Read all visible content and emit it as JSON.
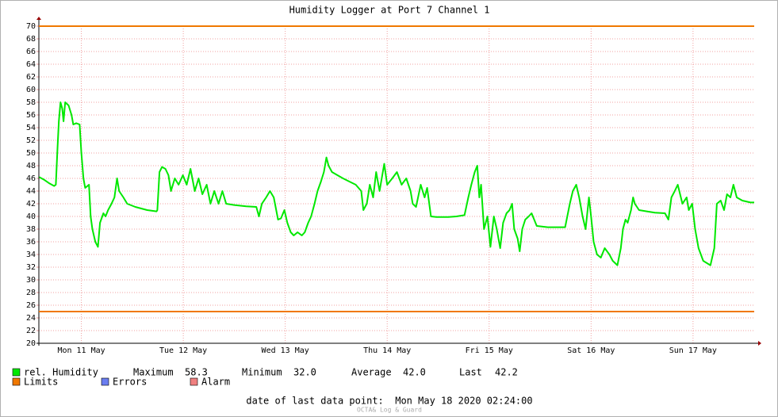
{
  "chart_data": {
    "type": "line",
    "title": "Humidity Logger at Port 7 Channel 1",
    "x": [
      2.1,
      3.2,
      4.5,
      5.6,
      6.0,
      6.4,
      6.7,
      7.1,
      7.5,
      7.8,
      8.2,
      9.0,
      9.7,
      10.1,
      10.8,
      11.6,
      12.0,
      12.5,
      12.9,
      13.8,
      14.2,
      14.6,
      15.3,
      15.9,
      16.4,
      17.2,
      17.7,
      18.3,
      19.1,
      19.8,
      20.4,
      20.9,
      21.9,
      22.8,
      24.7,
      27.5,
      29.7,
      29.9,
      30.4,
      31.0,
      31.8,
      32.5,
      33.1,
      34.0,
      34.9,
      35.9,
      36.8,
      37.7,
      38.7,
      39.6,
      40.5,
      41.5,
      42.4,
      43.3,
      44.3,
      45.2,
      46.1,
      48.0,
      50.8,
      53.2,
      53.8,
      54.5,
      55.5,
      56.4,
      57.3,
      58.3,
      59.0,
      59.8,
      60.5,
      61.3,
      62.0,
      62.9,
      63.9,
      64.6,
      65.4,
      66.1,
      66.9,
      67.6,
      68.4,
      69.1,
      69.7,
      70.2,
      71.0,
      72.3,
      73.6,
      75.1,
      76.6,
      77.9,
      78.4,
      79.2,
      79.9,
      80.7,
      81.4,
      82.2,
      83.3,
      84.0,
      85.2,
      86.3,
      87.4,
      88.5,
      89.5,
      90.0,
      90.8,
      91.9,
      92.8,
      93.4,
      94.3,
      95.6,
      98.4,
      100.3,
      102.2,
      103.1,
      103.8,
      104.6,
      105.2,
      105.7,
      106.1,
      106.8,
      107.6,
      108.3,
      109.1,
      109.8,
      110.6,
      111.3,
      112.1,
      112.8,
      113.4,
      113.9,
      114.7,
      115.2,
      115.8,
      116.5,
      117.3,
      118.0,
      119.2,
      121.8,
      125.9,
      126.4,
      127.0,
      127.7,
      128.5,
      129.2,
      130.0,
      130.7,
      131.5,
      132.0,
      132.6,
      133.4,
      134.3,
      135.2,
      136.3,
      137.1,
      138.2,
      139.0,
      139.5,
      140.1,
      140.6,
      141.4,
      141.9,
      142.3,
      143.3,
      145.1,
      147.0,
      149.4,
      150.2,
      150.9,
      151.7,
      152.4,
      153.5,
      154.5,
      155.0,
      155.8,
      156.5,
      157.3,
      158.4,
      160.1,
      161.0,
      161.6,
      162.5,
      163.3,
      164.0,
      164.8,
      165.5,
      166.3,
      167.6,
      169.5,
      170.4
    ],
    "series": [
      {
        "name": "rel. Humidity",
        "color": "#00e800",
        "values": [
          46.2,
          45.8,
          45.2,
          44.8,
          45,
          51,
          55,
          58,
          57,
          55,
          58,
          57.5,
          56,
          54.5,
          54.7,
          54.5,
          50,
          46,
          44.5,
          45,
          40,
          38,
          36,
          35.2,
          39,
          40.5,
          40,
          41,
          42,
          43,
          46,
          44,
          43,
          42,
          41.5,
          41,
          40.8,
          41,
          47,
          47.8,
          47.5,
          46.5,
          44,
          46,
          45,
          46.5,
          45,
          47.5,
          44,
          46,
          43.5,
          45,
          42,
          44,
          42,
          44,
          42,
          41.8,
          41.6,
          41.5,
          40,
          42,
          43,
          44,
          43,
          39.5,
          39.7,
          41,
          39,
          37.5,
          37,
          37.5,
          37,
          37.5,
          39,
          40,
          42,
          44,
          45.5,
          47,
          49.3,
          48,
          47,
          46.5,
          46,
          45.5,
          45,
          44,
          41,
          42,
          45,
          43,
          47,
          44,
          48.3,
          45,
          46,
          47,
          45,
          46,
          44,
          42,
          41.5,
          45,
          43,
          44.5,
          40,
          39.9,
          39.9,
          40,
          40.2,
          43,
          45,
          47,
          48,
          43,
          45,
          38,
          40,
          35.2,
          40,
          38,
          35,
          39,
          40.5,
          41,
          42,
          38,
          36.5,
          34.5,
          38,
          39.5,
          40,
          40.5,
          38.5,
          38.3,
          38.3,
          40,
          42,
          44,
          45,
          43,
          40,
          38,
          43,
          40,
          36,
          34,
          33.5,
          35,
          34,
          33,
          32.3,
          35,
          38,
          39.5,
          39,
          41,
          43,
          42,
          41,
          40.8,
          40.6,
          40.5,
          39.5,
          43,
          44,
          45,
          42,
          43,
          41,
          42,
          38,
          35,
          33,
          32.3,
          35,
          42,
          42.5,
          41,
          43.5,
          43,
          45,
          43,
          42.5,
          42.2,
          42.2
        ]
      }
    ],
    "xlim": [
      2,
      170.4
    ],
    "xticks": [
      {
        "value": 12,
        "label": "Mon 11 May"
      },
      {
        "value": 36,
        "label": "Tue 12 May"
      },
      {
        "value": 60,
        "label": "Wed 13 May"
      },
      {
        "value": 84,
        "label": "Thu 14 May"
      },
      {
        "value": 108,
        "label": "Fri 15 May"
      },
      {
        "value": 132,
        "label": "Sat 16 May"
      },
      {
        "value": 156,
        "label": "Sun 17 May"
      }
    ],
    "ylim": [
      20,
      70
    ],
    "yticks": [
      20,
      22,
      24,
      26,
      28,
      30,
      32,
      34,
      36,
      38,
      40,
      42,
      44,
      46,
      48,
      50,
      52,
      54,
      56,
      58,
      60,
      62,
      64,
      66,
      68,
      70
    ],
    "grid": true,
    "limits": {
      "name": "Limits",
      "color": "#f07800",
      "values": [
        70,
        25
      ]
    },
    "legend_extra": [
      {
        "name": "Errors",
        "color": "#6a7df0"
      },
      {
        "name": "Alarm",
        "color": "#f08080"
      }
    ],
    "stats": {
      "names": [
        "Maximum",
        "Minimum",
        "Average",
        "Last"
      ],
      "values": [
        58.3,
        32,
        42,
        42.2
      ],
      "value_labels": [
        "58.3",
        "32.0",
        "42.0",
        "42.2"
      ]
    },
    "footer": "date of last data point:  Mon May 18 2020 02:24:00",
    "watermark": "OCTA& Log & Guard"
  }
}
